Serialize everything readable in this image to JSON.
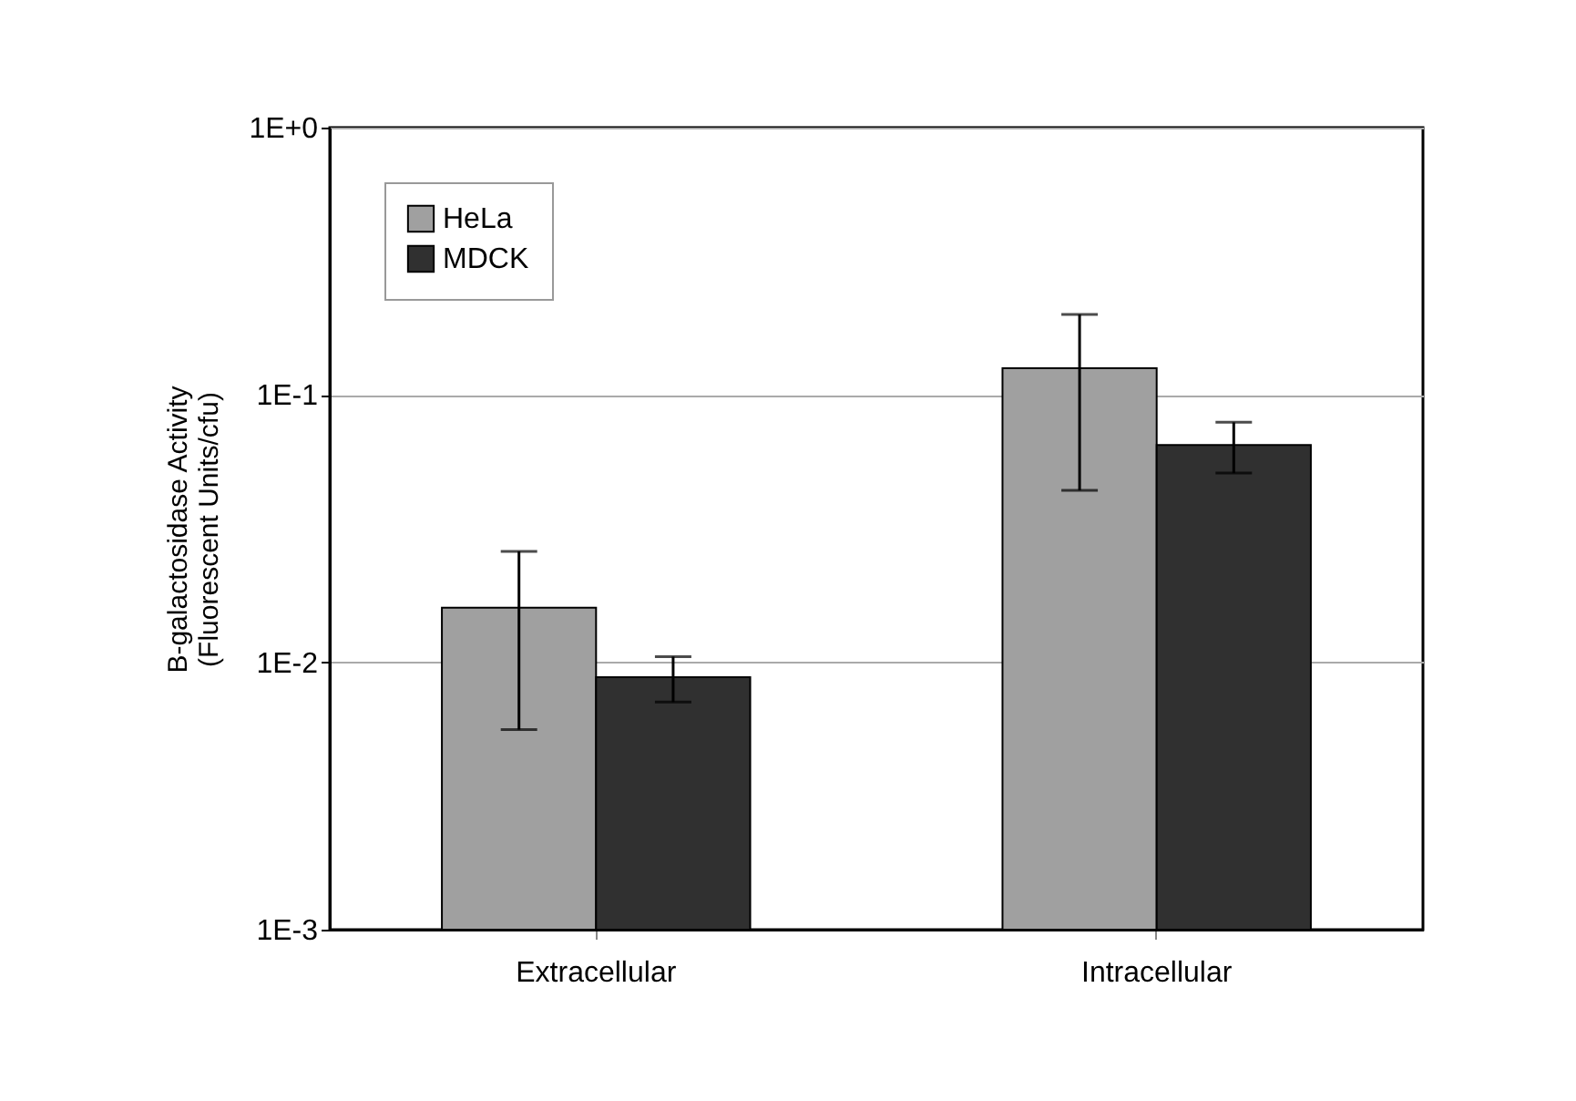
{
  "chart_data": {
    "type": "bar",
    "categories": [
      "Extracellular",
      "Intracellular"
    ],
    "ylabel": "B-galactosidase Activity\n(Fluorescent Units/cfu)",
    "series": [
      {
        "name": "HeLa",
        "color": "#a0a0a0",
        "values": [
          0.016,
          0.126
        ],
        "errors": [
          [
            0.0056,
            0.026
          ],
          [
            0.044,
            0.2
          ]
        ]
      },
      {
        "name": "MDCK",
        "color": "#303030",
        "values": [
          0.0088,
          0.065
        ],
        "errors": [
          [
            0.0071,
            0.0105
          ],
          [
            0.051,
            0.079
          ]
        ]
      }
    ],
    "log": true,
    "ylim": [
      0.001,
      1
    ],
    "yticks": [
      {
        "value": 0.001,
        "label": "1E-3"
      },
      {
        "value": 0.01,
        "label": "1E-2"
      },
      {
        "value": 0.1,
        "label": "1E-1"
      },
      {
        "value": 1,
        "label": "1E+0"
      }
    ],
    "grid": "y",
    "legend": "top left"
  }
}
